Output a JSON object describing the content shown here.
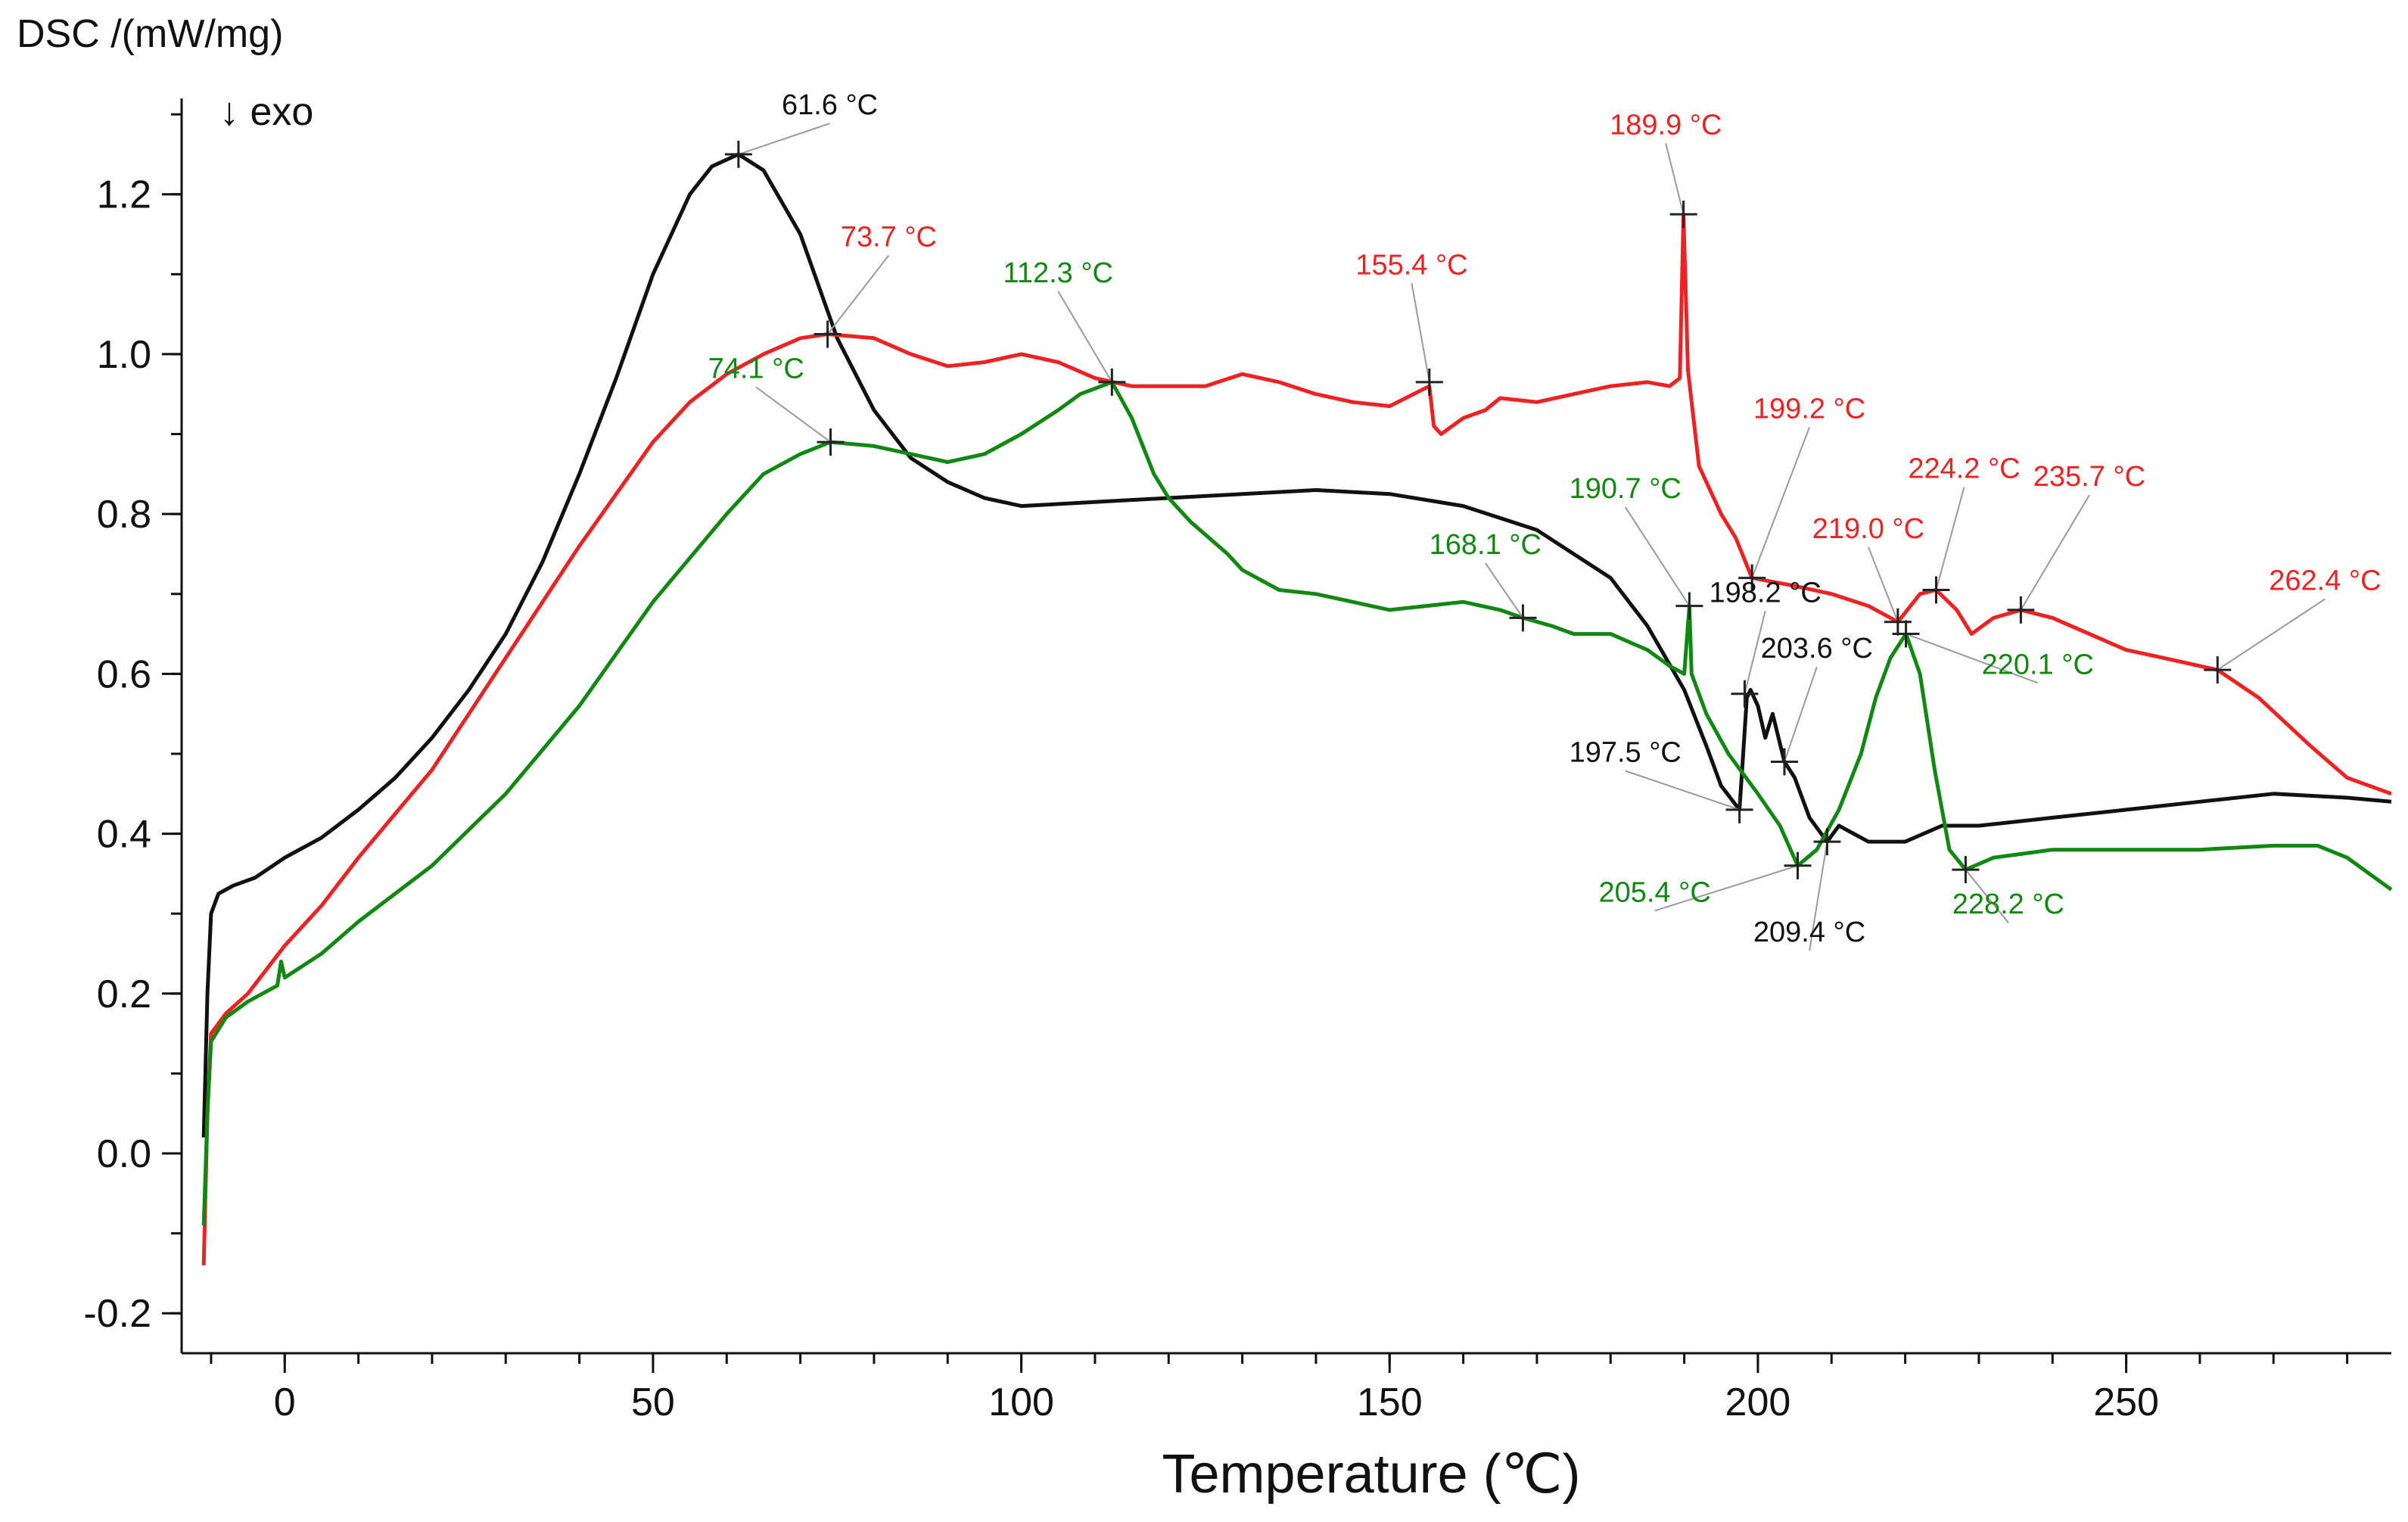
{
  "chart_data": {
    "type": "line",
    "ylabel": "DSC /(mW/mg)",
    "xlabel": "Temperature (℃)",
    "direction_note": "↓ exo",
    "xlim": [
      -14,
      286
    ],
    "ylim": [
      -0.25,
      1.32
    ],
    "grid": false,
    "legend": "none",
    "x_ticks": [
      0,
      50,
      100,
      150,
      200,
      250
    ],
    "y_ticks": [
      -0.2,
      0.0,
      0.2,
      0.4,
      0.6,
      0.8,
      1.0,
      1.2
    ],
    "x_tick_labels": [
      "0",
      "50",
      "100",
      "150",
      "200",
      "250"
    ],
    "y_tick_labels": [
      "-0.2",
      "0.0",
      "0.2",
      "0.4",
      "0.6",
      "0.8",
      "1.0",
      "1.2"
    ],
    "colors": {
      "black": "#111111",
      "red": "#ee2222",
      "green": "#118811",
      "annot_line": "#9a9a9a"
    },
    "series": [
      {
        "color": "#111111",
        "points": [
          [
            -11,
            0.02
          ],
          [
            -10.5,
            0.2
          ],
          [
            -10,
            0.3
          ],
          [
            -9,
            0.325
          ],
          [
            -7,
            0.335
          ],
          [
            -4,
            0.345
          ],
          [
            0,
            0.37
          ],
          [
            5,
            0.395
          ],
          [
            10,
            0.43
          ],
          [
            15,
            0.47
          ],
          [
            20,
            0.52
          ],
          [
            25,
            0.58
          ],
          [
            30,
            0.65
          ],
          [
            35,
            0.74
          ],
          [
            40,
            0.85
          ],
          [
            45,
            0.97
          ],
          [
            50,
            1.1
          ],
          [
            55,
            1.2
          ],
          [
            58,
            1.235
          ],
          [
            61.6,
            1.25
          ],
          [
            65,
            1.23
          ],
          [
            70,
            1.15
          ],
          [
            75,
            1.02
          ],
          [
            80,
            0.93
          ],
          [
            85,
            0.87
          ],
          [
            90,
            0.84
          ],
          [
            95,
            0.82
          ],
          [
            100,
            0.81
          ],
          [
            110,
            0.815
          ],
          [
            120,
            0.82
          ],
          [
            130,
            0.825
          ],
          [
            140,
            0.83
          ],
          [
            150,
            0.825
          ],
          [
            160,
            0.81
          ],
          [
            170,
            0.78
          ],
          [
            180,
            0.72
          ],
          [
            185,
            0.66
          ],
          [
            190,
            0.58
          ],
          [
            193,
            0.51
          ],
          [
            195,
            0.46
          ],
          [
            197.5,
            0.43
          ],
          [
            198,
            0.5
          ],
          [
            198.5,
            0.57
          ],
          [
            199,
            0.58
          ],
          [
            200,
            0.56
          ],
          [
            201,
            0.52
          ],
          [
            202,
            0.55
          ],
          [
            203.6,
            0.49
          ],
          [
            205,
            0.47
          ],
          [
            207,
            0.42
          ],
          [
            209.4,
            0.39
          ],
          [
            211,
            0.41
          ],
          [
            215,
            0.39
          ],
          [
            220,
            0.39
          ],
          [
            225,
            0.41
          ],
          [
            230,
            0.41
          ],
          [
            240,
            0.42
          ],
          [
            250,
            0.43
          ],
          [
            260,
            0.44
          ],
          [
            270,
            0.45
          ],
          [
            280,
            0.445
          ],
          [
            286,
            0.44
          ]
        ]
      },
      {
        "color": "#ee2222",
        "points": [
          [
            -11,
            -0.14
          ],
          [
            -10.5,
            0.05
          ],
          [
            -10,
            0.15
          ],
          [
            -8,
            0.175
          ],
          [
            -5,
            0.2
          ],
          [
            0,
            0.26
          ],
          [
            5,
            0.31
          ],
          [
            10,
            0.37
          ],
          [
            20,
            0.48
          ],
          [
            30,
            0.62
          ],
          [
            40,
            0.76
          ],
          [
            50,
            0.89
          ],
          [
            55,
            0.94
          ],
          [
            60,
            0.975
          ],
          [
            65,
            1.0
          ],
          [
            70,
            1.02
          ],
          [
            73.7,
            1.025
          ],
          [
            80,
            1.02
          ],
          [
            85,
            1.0
          ],
          [
            90,
            0.985
          ],
          [
            95,
            0.99
          ],
          [
            100,
            1.0
          ],
          [
            105,
            0.99
          ],
          [
            110,
            0.97
          ],
          [
            115,
            0.96
          ],
          [
            120,
            0.96
          ],
          [
            125,
            0.96
          ],
          [
            130,
            0.975
          ],
          [
            135,
            0.965
          ],
          [
            140,
            0.95
          ],
          [
            145,
            0.94
          ],
          [
            150,
            0.935
          ],
          [
            155.4,
            0.96
          ],
          [
            156,
            0.91
          ],
          [
            157,
            0.9
          ],
          [
            160,
            0.92
          ],
          [
            163,
            0.93
          ],
          [
            165,
            0.945
          ],
          [
            170,
            0.94
          ],
          [
            175,
            0.95
          ],
          [
            180,
            0.96
          ],
          [
            185,
            0.965
          ],
          [
            188,
            0.96
          ],
          [
            189.4,
            0.97
          ],
          [
            189.9,
            1.175
          ],
          [
            190.5,
            0.98
          ],
          [
            192,
            0.86
          ],
          [
            195,
            0.8
          ],
          [
            197,
            0.77
          ],
          [
            199.2,
            0.72
          ],
          [
            205,
            0.71
          ],
          [
            210,
            0.7
          ],
          [
            215,
            0.685
          ],
          [
            219,
            0.665
          ],
          [
            222,
            0.7
          ],
          [
            224.2,
            0.705
          ],
          [
            227,
            0.68
          ],
          [
            229,
            0.65
          ],
          [
            232,
            0.67
          ],
          [
            235.7,
            0.68
          ],
          [
            240,
            0.67
          ],
          [
            245,
            0.65
          ],
          [
            250,
            0.63
          ],
          [
            255,
            0.62
          ],
          [
            262.4,
            0.605
          ],
          [
            268,
            0.57
          ],
          [
            275,
            0.51
          ],
          [
            280,
            0.47
          ],
          [
            286,
            0.45
          ]
        ]
      },
      {
        "color": "#118811",
        "points": [
          [
            -11,
            -0.09
          ],
          [
            -10.5,
            0.05
          ],
          [
            -10,
            0.14
          ],
          [
            -8,
            0.17
          ],
          [
            -5,
            0.19
          ],
          [
            -1,
            0.21
          ],
          [
            -0.5,
            0.24
          ],
          [
            0,
            0.22
          ],
          [
            5,
            0.25
          ],
          [
            10,
            0.29
          ],
          [
            20,
            0.36
          ],
          [
            30,
            0.45
          ],
          [
            40,
            0.56
          ],
          [
            50,
            0.69
          ],
          [
            60,
            0.8
          ],
          [
            65,
            0.85
          ],
          [
            70,
            0.875
          ],
          [
            74.1,
            0.89
          ],
          [
            80,
            0.885
          ],
          [
            85,
            0.875
          ],
          [
            90,
            0.865
          ],
          [
            95,
            0.875
          ],
          [
            100,
            0.9
          ],
          [
            105,
            0.93
          ],
          [
            108,
            0.95
          ],
          [
            112.3,
            0.965
          ],
          [
            115,
            0.92
          ],
          [
            118,
            0.85
          ],
          [
            120,
            0.82
          ],
          [
            123,
            0.79
          ],
          [
            128,
            0.75
          ],
          [
            130,
            0.73
          ],
          [
            135,
            0.705
          ],
          [
            140,
            0.7
          ],
          [
            145,
            0.69
          ],
          [
            150,
            0.68
          ],
          [
            155,
            0.685
          ],
          [
            160,
            0.69
          ],
          [
            165,
            0.68
          ],
          [
            168.1,
            0.67
          ],
          [
            172,
            0.66
          ],
          [
            175,
            0.65
          ],
          [
            180,
            0.65
          ],
          [
            185,
            0.63
          ],
          [
            188,
            0.61
          ],
          [
            190,
            0.6
          ],
          [
            190.7,
            0.685
          ],
          [
            191,
            0.6
          ],
          [
            193,
            0.55
          ],
          [
            196,
            0.5
          ],
          [
            200,
            0.45
          ],
          [
            203,
            0.41
          ],
          [
            205.4,
            0.36
          ],
          [
            208,
            0.38
          ],
          [
            211,
            0.43
          ],
          [
            214,
            0.5
          ],
          [
            216,
            0.57
          ],
          [
            218,
            0.62
          ],
          [
            220.1,
            0.65
          ],
          [
            222,
            0.6
          ],
          [
            224,
            0.48
          ],
          [
            226,
            0.38
          ],
          [
            228.2,
            0.355
          ],
          [
            232,
            0.37
          ],
          [
            240,
            0.38
          ],
          [
            250,
            0.38
          ],
          [
            260,
            0.38
          ],
          [
            270,
            0.385
          ],
          [
            276,
            0.385
          ],
          [
            280,
            0.37
          ],
          [
            286,
            0.33
          ]
        ]
      }
    ],
    "annotations": [
      {
        "text": "61.6 °C",
        "color": "#111111",
        "x": 61.6,
        "y": 1.25,
        "lx": 74,
        "ly": 1.3
      },
      {
        "text": "73.7 °C",
        "color": "#ee2222",
        "x": 73.7,
        "y": 1.025,
        "lx": 82,
        "ly": 1.135
      },
      {
        "text": "112.3 °C",
        "color": "#118811",
        "x": 112.3,
        "y": 0.965,
        "lx": 105,
        "ly": 1.09
      },
      {
        "text": "74.1 °C",
        "color": "#118811",
        "x": 74.1,
        "y": 0.89,
        "lx": 64,
        "ly": 0.97
      },
      {
        "text": "155.4 °C",
        "color": "#ee2222",
        "x": 155.4,
        "y": 0.965,
        "lx": 153,
        "ly": 1.1
      },
      {
        "text": "189.9 °C",
        "color": "#ee2222",
        "x": 189.9,
        "y": 1.175,
        "lx": 187.5,
        "ly": 1.275
      },
      {
        "text": "199.2 °C",
        "color": "#ee2222",
        "x": 199.2,
        "y": 0.72,
        "lx": 207,
        "ly": 0.92
      },
      {
        "text": "190.7 °C",
        "color": "#118811",
        "x": 190.7,
        "y": 0.685,
        "lx": 182,
        "ly": 0.82
      },
      {
        "text": "168.1 °C",
        "color": "#118811",
        "x": 168.1,
        "y": 0.67,
        "lx": 163,
        "ly": 0.75
      },
      {
        "text": "198.2 °C",
        "color": "#111111",
        "x": 198.2,
        "y": 0.575,
        "lx": 201,
        "ly": 0.69
      },
      {
        "text": "219.0 °C",
        "color": "#ee2222",
        "x": 219,
        "y": 0.665,
        "lx": 215,
        "ly": 0.77
      },
      {
        "text": "224.2 °C",
        "color": "#ee2222",
        "x": 224.2,
        "y": 0.705,
        "lx": 228,
        "ly": 0.845
      },
      {
        "text": "235.7 °C",
        "color": "#ee2222",
        "x": 235.7,
        "y": 0.68,
        "lx": 245,
        "ly": 0.835
      },
      {
        "text": "262.4 °C",
        "color": "#ee2222",
        "x": 262.4,
        "y": 0.605,
        "lx": 277,
        "ly": 0.705
      },
      {
        "text": "220.1 °C",
        "color": "#118811",
        "x": 220.1,
        "y": 0.65,
        "lx": 238,
        "ly": 0.6
      },
      {
        "text": "203.6 °C",
        "color": "#111111",
        "x": 203.6,
        "y": 0.49,
        "lx": 208,
        "ly": 0.62
      },
      {
        "text": "197.5 °C",
        "color": "#111111",
        "x": 197.5,
        "y": 0.43,
        "lx": 182,
        "ly": 0.49
      },
      {
        "text": "205.4 °C",
        "color": "#118811",
        "x": 205.4,
        "y": 0.36,
        "lx": 186,
        "ly": 0.315
      },
      {
        "text": "209.4 °C",
        "color": "#111111",
        "x": 209.4,
        "y": 0.39,
        "lx": 207,
        "ly": 0.265
      },
      {
        "text": "228.2 °C",
        "color": "#118811",
        "x": 228.2,
        "y": 0.355,
        "lx": 234,
        "ly": 0.3
      }
    ]
  }
}
